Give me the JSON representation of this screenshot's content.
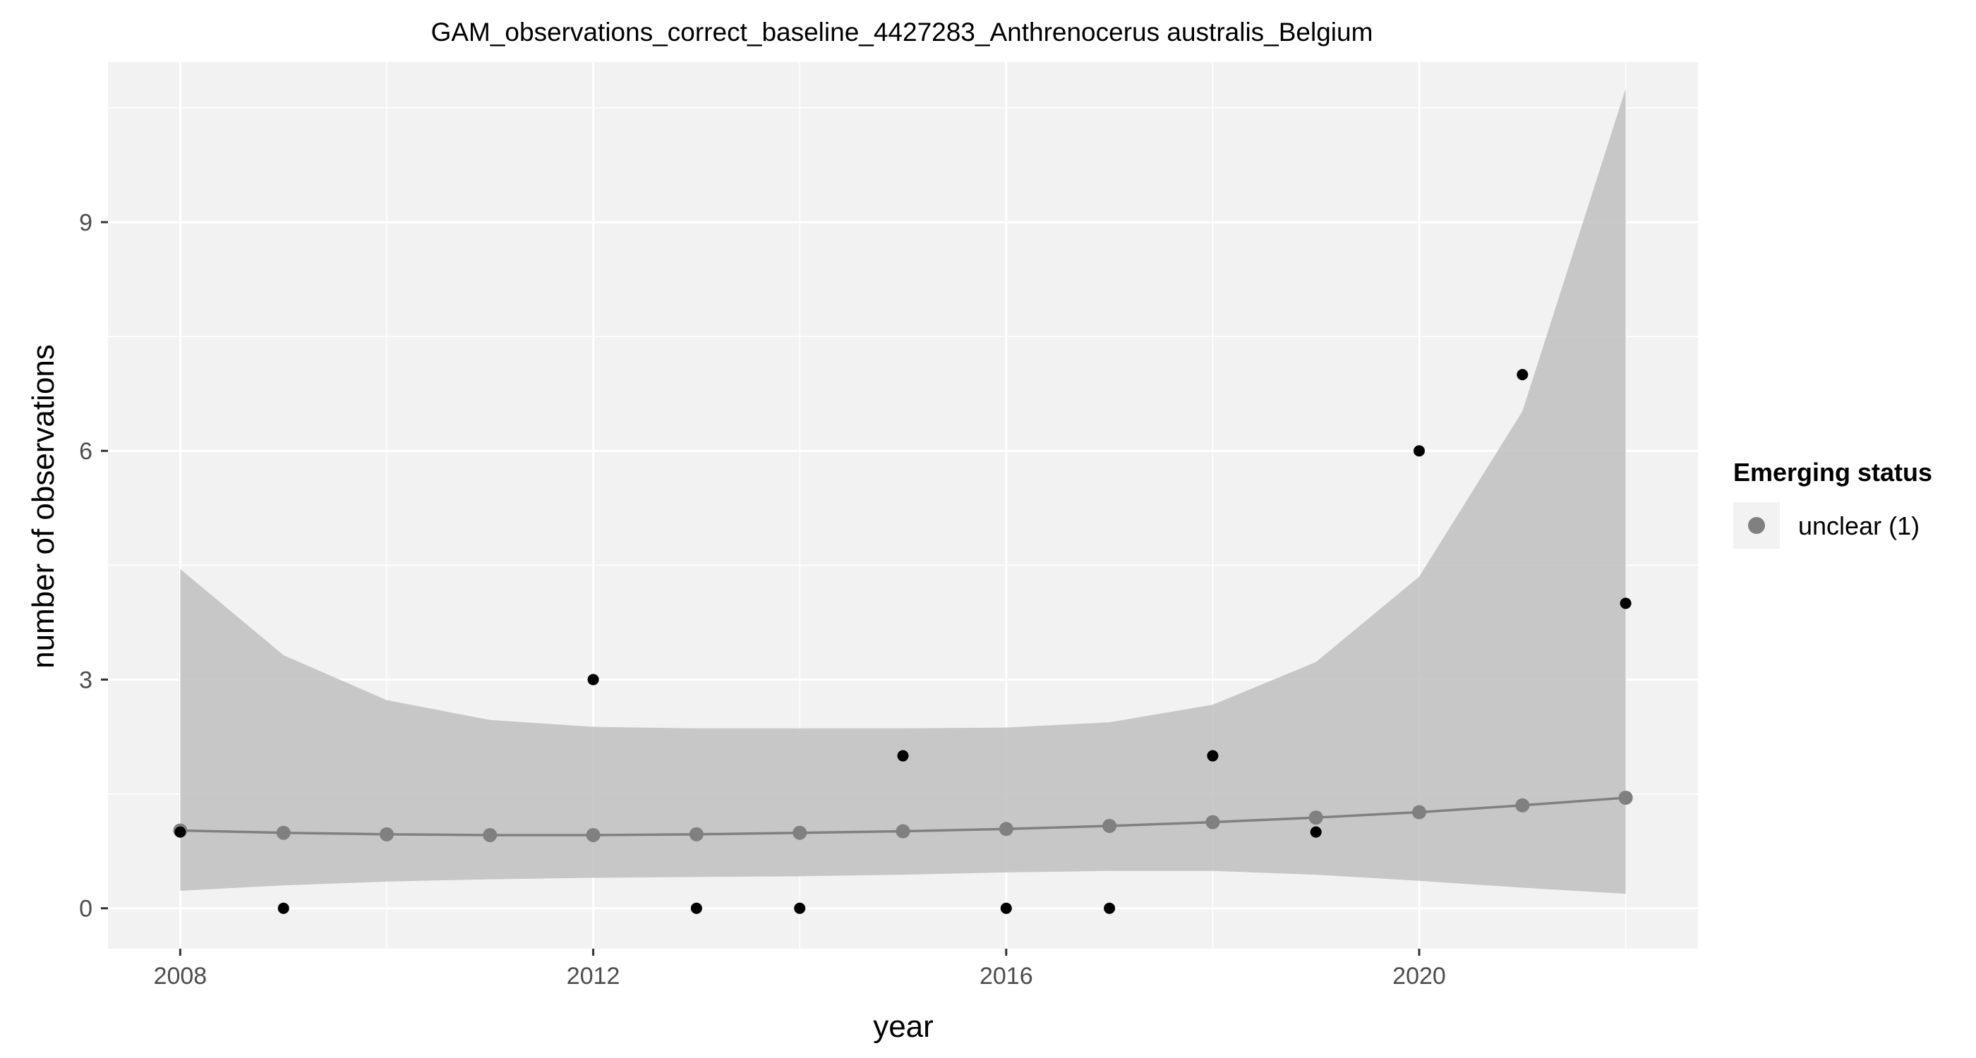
{
  "chart_data": {
    "type": "line",
    "title": "GAM_observations_correct_baseline_4427283_Anthrenocerus australis_Belgium",
    "xlabel": "year",
    "ylabel": "number of observations",
    "xlim": [
      2007.3,
      2022.7
    ],
    "ylim": [
      -0.53,
      11.1
    ],
    "x_ticks": [
      2008,
      2012,
      2016,
      2020
    ],
    "y_ticks": [
      0,
      3,
      6,
      9
    ],
    "grid": true,
    "legend": {
      "title": "Emerging status",
      "position": "right",
      "entries": [
        {
          "label": "unclear (1)",
          "color": "#808080"
        }
      ]
    },
    "observed": {
      "color": "#000000",
      "x": [
        2008,
        2009,
        2012,
        2013,
        2014,
        2015,
        2016,
        2017,
        2018,
        2019,
        2020,
        2021,
        2022
      ],
      "y": [
        1,
        0,
        3,
        0,
        0,
        2,
        0,
        0,
        2,
        1,
        6,
        7,
        4
      ]
    },
    "series": [
      {
        "name": "unclear (1)",
        "color": "#808080",
        "x": [
          2008,
          2009,
          2010,
          2011,
          2012,
          2013,
          2014,
          2015,
          2016,
          2017,
          2018,
          2019,
          2020,
          2021,
          2022
        ],
        "fit": [
          1.02,
          0.99,
          0.97,
          0.96,
          0.96,
          0.97,
          0.99,
          1.01,
          1.04,
          1.08,
          1.13,
          1.19,
          1.26,
          1.35,
          1.45
        ],
        "lower": [
          0.23,
          0.3,
          0.35,
          0.38,
          0.4,
          0.41,
          0.42,
          0.44,
          0.47,
          0.49,
          0.49,
          0.44,
          0.36,
          0.27,
          0.19
        ],
        "upper": [
          4.45,
          3.32,
          2.73,
          2.47,
          2.38,
          2.36,
          2.36,
          2.36,
          2.37,
          2.44,
          2.67,
          3.23,
          4.35,
          6.52,
          10.75
        ]
      }
    ]
  }
}
